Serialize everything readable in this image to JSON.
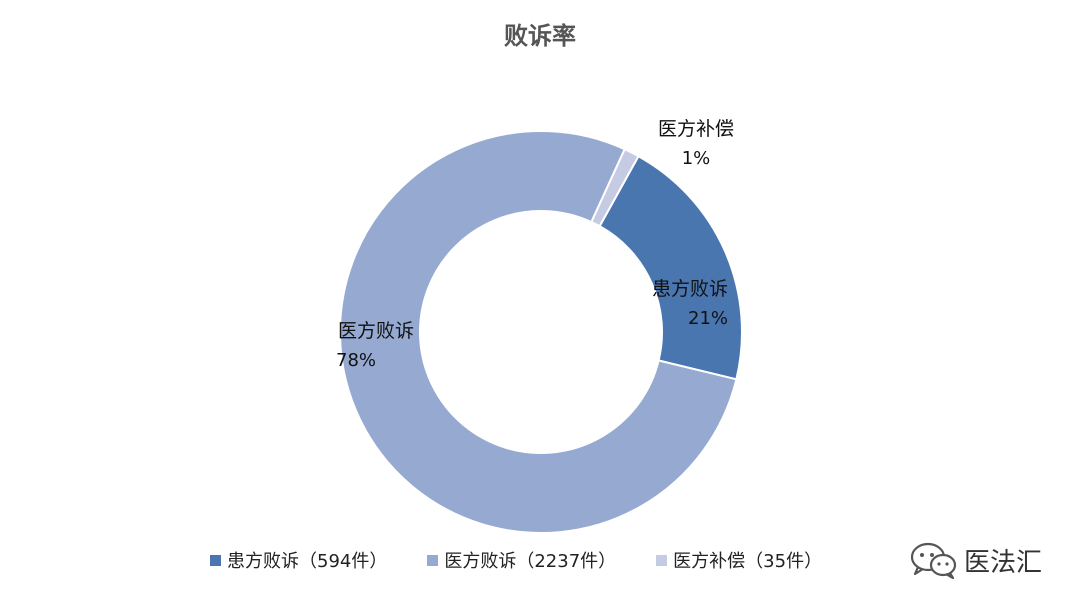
{
  "chart_data": {
    "type": "pie",
    "title": "败诉率",
    "donut": true,
    "slices": [
      {
        "name": "患方败诉",
        "pct_label": "21%",
        "legend": "患方败诉（594件）",
        "count": 594,
        "color": "#4a76b0"
      },
      {
        "name": "医方败诉",
        "pct_label": "78%",
        "legend": "医方败诉（2237件）",
        "count": 2237,
        "color": "#95a9d1"
      },
      {
        "name": "医方补偿",
        "pct_label": "1%",
        "legend": "医方补偿（35件）",
        "count": 35,
        "color": "#c6cbe4"
      }
    ],
    "legend_position": "bottom"
  },
  "watermark": {
    "text": "医法汇",
    "icon": "wechat-icon"
  }
}
